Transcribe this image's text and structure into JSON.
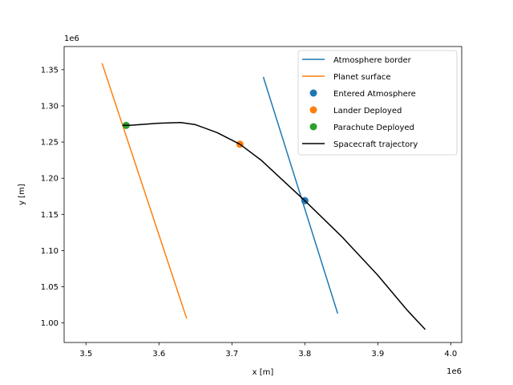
{
  "chart_data": {
    "type": "line",
    "xlabel": "x [m]",
    "ylabel": "y [m]",
    "x_offset_label": "1e6",
    "y_offset_label": "1e6",
    "xlim": [
      3.47,
      4.015
    ],
    "ylim": [
      0.973,
      1.382
    ],
    "grid": false,
    "legend_position": "top-right",
    "x_ticks": [
      {
        "value": 3.5,
        "label": "3.5"
      },
      {
        "value": 3.6,
        "label": "3.6"
      },
      {
        "value": 3.7,
        "label": "3.7"
      },
      {
        "value": 3.8,
        "label": "3.8"
      },
      {
        "value": 3.9,
        "label": "3.9"
      },
      {
        "value": 4.0,
        "label": "4.0"
      }
    ],
    "y_ticks": [
      {
        "value": 1.0,
        "label": "1.00"
      },
      {
        "value": 1.05,
        "label": "1.05"
      },
      {
        "value": 1.1,
        "label": "1.10"
      },
      {
        "value": 1.15,
        "label": "1.15"
      },
      {
        "value": 1.2,
        "label": "1.20"
      },
      {
        "value": 1.25,
        "label": "1.25"
      },
      {
        "value": 1.3,
        "label": "1.30"
      },
      {
        "value": 1.35,
        "label": "1.35"
      }
    ],
    "series": [
      {
        "name": "Atmosphere border",
        "kind": "line",
        "color": "#1f77b4",
        "x": [
          3.743,
          3.845
        ],
        "y": [
          1.34,
          1.013
        ]
      },
      {
        "name": "Planet surface",
        "kind": "line",
        "color": "#ff7f0e",
        "x": [
          3.522,
          3.638
        ],
        "y": [
          1.359,
          1.006
        ]
      },
      {
        "name": "Entered Atmosphere",
        "kind": "point",
        "color": "#1f77b4",
        "x": [
          3.8
        ],
        "y": [
          1.169
        ]
      },
      {
        "name": "Lander Deployed",
        "kind": "point",
        "color": "#ff7f0e",
        "x": [
          3.711
        ],
        "y": [
          1.247
        ]
      },
      {
        "name": "Parachute Deployed",
        "kind": "point",
        "color": "#2ca02c",
        "x": [
          3.555
        ],
        "y": [
          1.273
        ]
      },
      {
        "name": "Spacecraft trajectory",
        "kind": "line",
        "color": "#000000",
        "x": [
          3.55,
          3.56,
          3.6,
          3.63,
          3.65,
          3.68,
          3.711,
          3.74,
          3.77,
          3.8,
          3.85,
          3.9,
          3.94,
          3.965
        ],
        "y": [
          1.273,
          1.273,
          1.276,
          1.277,
          1.274,
          1.263,
          1.247,
          1.225,
          1.197,
          1.169,
          1.12,
          1.066,
          1.018,
          0.991
        ]
      }
    ]
  }
}
